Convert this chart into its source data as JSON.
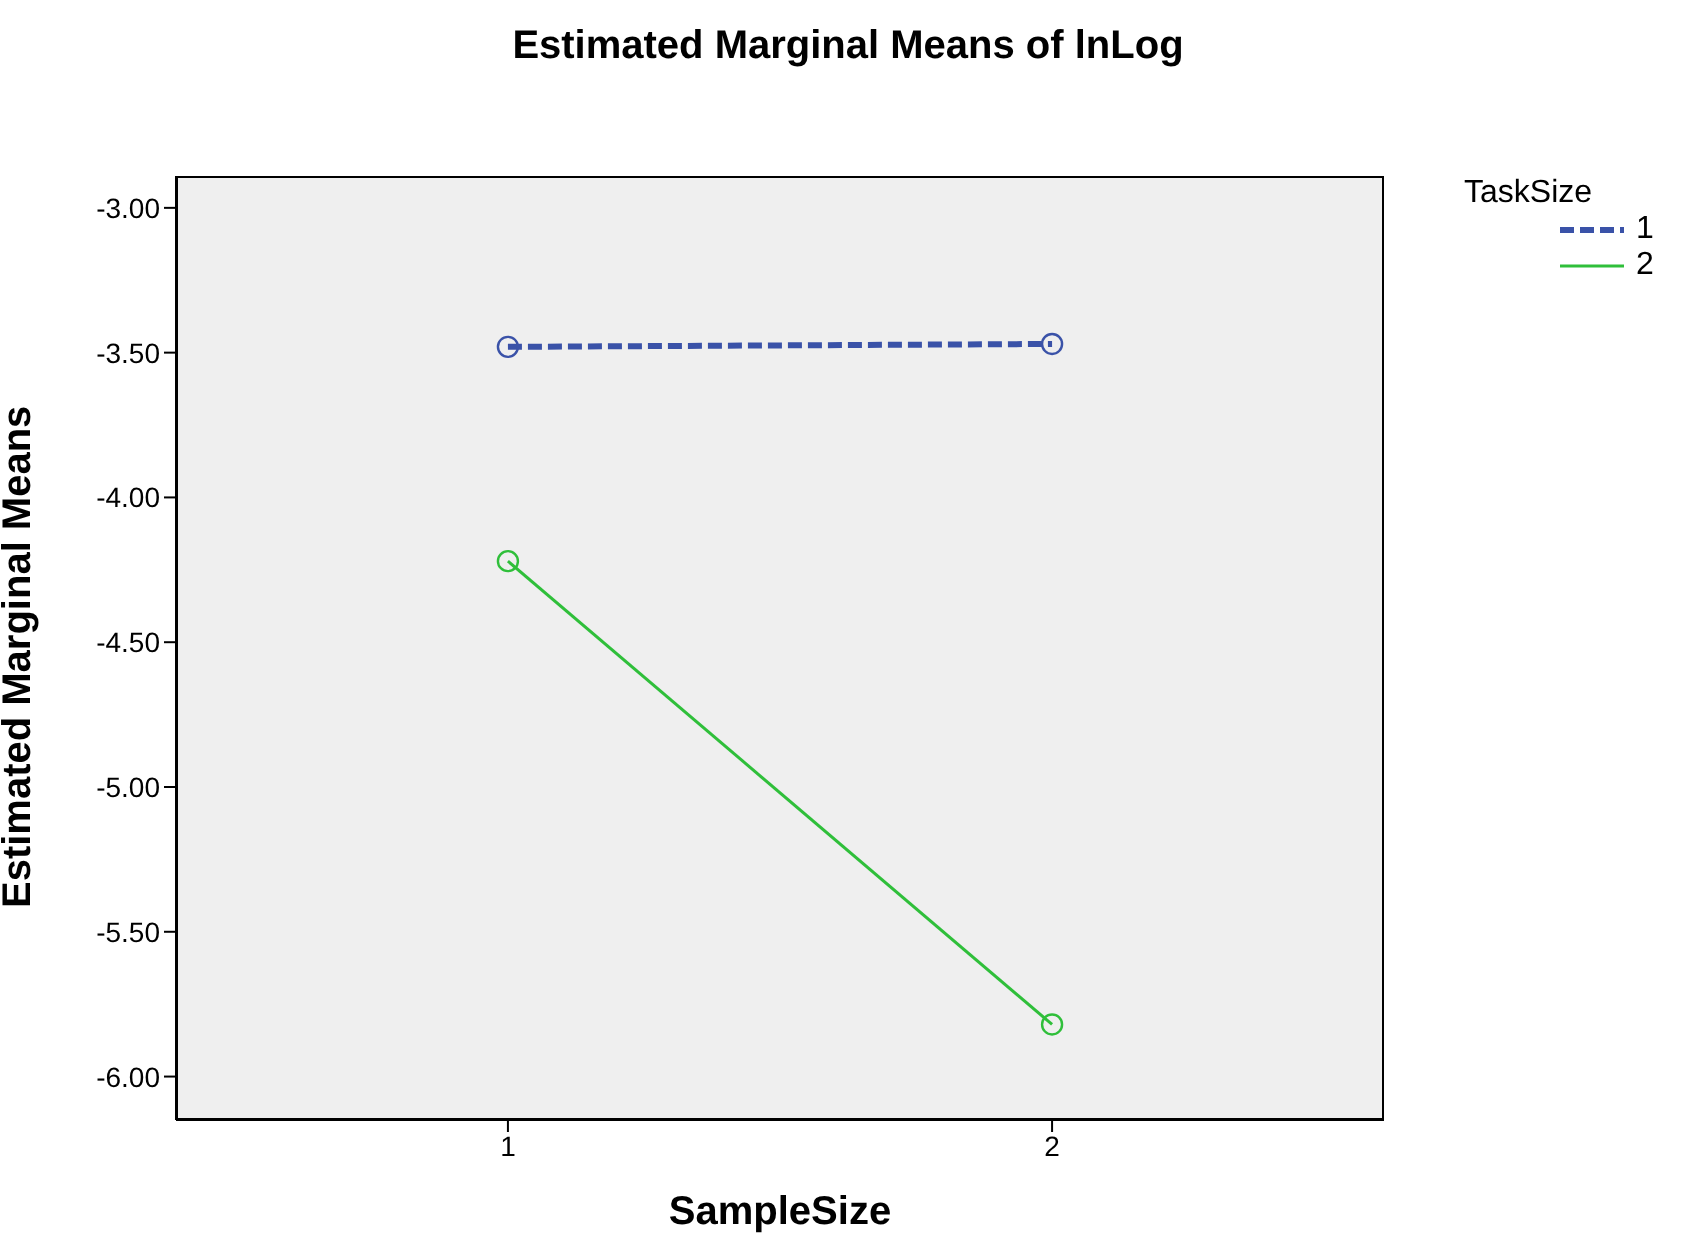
{
  "chart_data": {
    "type": "line",
    "title": "Estimated Marginal Means of lnLog",
    "xlabel": "SampleSize",
    "ylabel": "Estimated Marginal Means",
    "legend_title": "TaskSize",
    "x": [
      1,
      2
    ],
    "xlim": [
      0.39,
      2.61
    ],
    "xticks": [
      1,
      2
    ],
    "ylim": [
      -6.15,
      -2.89
    ],
    "yticks": [
      {
        "value": -3,
        "label": "-3.00"
      },
      {
        "value": -3.5,
        "label": "-3.50"
      },
      {
        "value": -4,
        "label": "-4.00"
      },
      {
        "value": -4.5,
        "label": "-4.50"
      },
      {
        "value": -5,
        "label": "-5.00"
      },
      {
        "value": -5.5,
        "label": "-5.50"
      },
      {
        "value": -6,
        "label": "-6.00"
      }
    ],
    "legend": "top right",
    "marker": "circle",
    "series": [
      {
        "name": "1",
        "color": "#3a52a8",
        "values": [
          -3.48,
          -3.47
        ],
        "line_style": "dashed"
      },
      {
        "name": "2",
        "color": "#2fbf3a",
        "values": [
          -4.22,
          -5.82
        ],
        "line_style": "solid"
      }
    ]
  }
}
